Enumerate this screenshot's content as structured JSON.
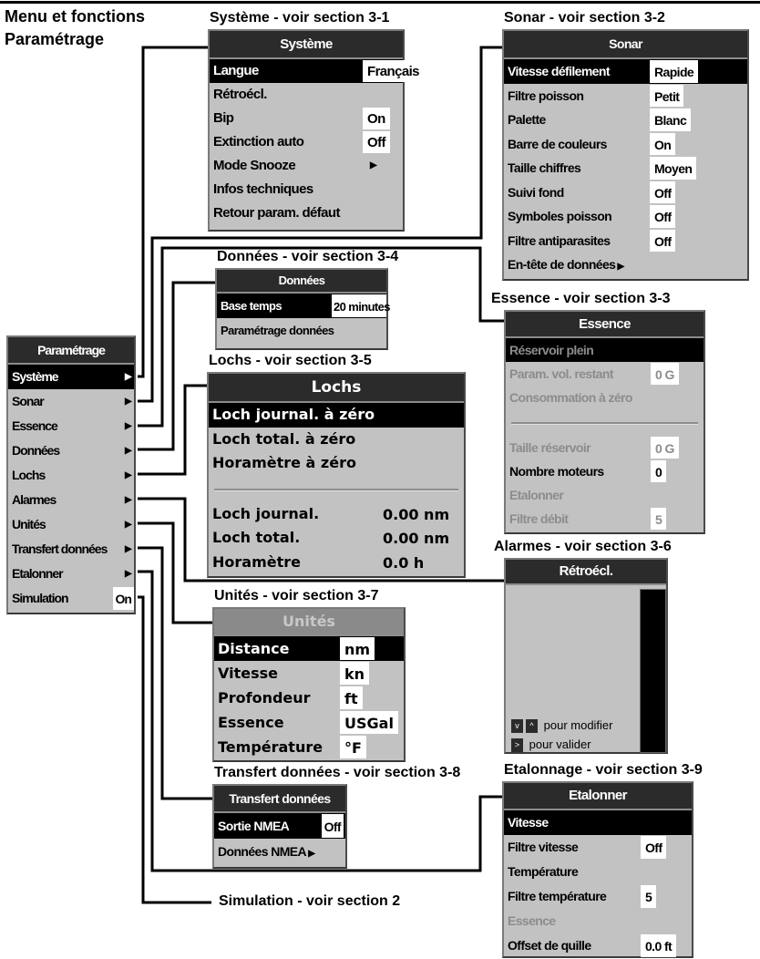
{
  "heading": {
    "line1": "Menu et fonctions",
    "line2": "Paramétrage"
  },
  "panels": [
    {
      "id": "p-param",
      "font": "narrow",
      "caption": "",
      "title": "Paramétrage",
      "rows": [
        {
          "label": "Système",
          "arrow": true,
          "highlighted": true
        },
        {
          "label": "Sonar",
          "arrow": true
        },
        {
          "label": "Essence",
          "arrow": true
        },
        {
          "label": "Données",
          "arrow": true
        },
        {
          "label": "Lochs",
          "arrow": true
        },
        {
          "label": "Alarmes",
          "arrow": true
        },
        {
          "label": "Unités",
          "arrow": true
        },
        {
          "label": "Transfert données",
          "arrow": true
        },
        {
          "label": "Etalonner",
          "arrow": true
        },
        {
          "label": "Simulation",
          "value": "On"
        }
      ]
    },
    {
      "id": "p-systeme",
      "font": "narrow",
      "caption": "Système - voir section 3-1",
      "title": "Système",
      "rows": [
        {
          "label": "Langue",
          "value": "Français",
          "highlighted": true
        },
        {
          "label": "Rétroécl."
        },
        {
          "label": "Bip",
          "value": "On"
        },
        {
          "label": "Extinction auto",
          "value": "Off"
        },
        {
          "label": "Mode Snooze",
          "submenu": true
        },
        {
          "label": "Infos techniques"
        },
        {
          "label": "Retour param. défaut"
        }
      ]
    },
    {
      "id": "p-sonar",
      "font": "narrow",
      "caption": "Sonar - voir section 3-2",
      "title": "Sonar",
      "rows": [
        {
          "label": "Vitesse défilement",
          "value": "Rapide",
          "highlighted": true
        },
        {
          "label": "Filtre poisson",
          "value": "Petit"
        },
        {
          "label": "Palette",
          "value": "Blanc"
        },
        {
          "label": "Barre de couleurs",
          "value": "On"
        },
        {
          "label": "Taille chiffres",
          "value": "Moyen"
        },
        {
          "label": "Suivi fond",
          "value": "Off"
        },
        {
          "label": "Symboles poisson",
          "value": "Off"
        },
        {
          "label": "Filtre antiparasites",
          "value": "Off"
        },
        {
          "label": "En-tête de données",
          "inlinearrow": true
        }
      ]
    },
    {
      "id": "p-donnees",
      "font": "narrow",
      "caption": "Données - voir section 3-4",
      "title": "Données",
      "rows": [
        {
          "label": "Base temps",
          "value": "20 minutes",
          "highlighted": true
        },
        {
          "label": "Paramétrage données"
        }
      ]
    },
    {
      "id": "p-lochs",
      "font": "wide",
      "caption": "Lochs - voir section 3-5",
      "title": "Lochs",
      "rows": [
        {
          "label": "Loch journal. à zéro",
          "highlighted": true
        },
        {
          "label": "Loch total. à zéro"
        },
        {
          "label": "Horamètre à zéro"
        },
        {
          "separator": true
        },
        {
          "label": "Loch journal.",
          "value": "0.00 nm"
        },
        {
          "label": "Loch total.",
          "value": "0.00 nm"
        },
        {
          "label": "Horamètre",
          "value": "0.0 h"
        }
      ]
    },
    {
      "id": "p-essence",
      "font": "narrow",
      "caption": "Essence - voir section 3-3",
      "title": "Essence",
      "rows": [
        {
          "label": "Réservoir plein",
          "highlighted": true,
          "disabled": true
        },
        {
          "label": "Param. vol. restant",
          "value": "0 G",
          "disabled": true
        },
        {
          "label": "Consommation à zéro",
          "disabled": true
        },
        {
          "separator": true
        },
        {
          "label": "Taille réservoir",
          "value": "0 G",
          "disabled": true
        },
        {
          "label": "Nombre moteurs",
          "value": "0"
        },
        {
          "label": "Etalonner",
          "disabled": true
        },
        {
          "label": "Filtre débit",
          "value": "5",
          "disabled": true
        }
      ]
    },
    {
      "id": "p-unites",
      "font": "wide",
      "caption": "Unités - voir section 3-7",
      "title": "Unités",
      "title_disabled": true,
      "rows": [
        {
          "label": "Distance",
          "value": "nm",
          "highlighted": true
        },
        {
          "label": "Vitesse",
          "value": "kn"
        },
        {
          "label": "Profondeur",
          "value": "ft"
        },
        {
          "label": "Essence",
          "value": "USGal"
        },
        {
          "label": "Température",
          "value": "°F"
        }
      ]
    },
    {
      "id": "p-transfert",
      "font": "narrow",
      "caption": "Transfert données - voir section 3-8",
      "title": "Transfert données",
      "rows": [
        {
          "label": "Sortie NMEA",
          "value": "Off",
          "highlighted": true
        },
        {
          "label": "Données NMEA",
          "inlinearrow": true
        }
      ]
    },
    {
      "id": "p-etal",
      "font": "narrow",
      "caption": "Etalonnage - voir section 3-9",
      "title": "Etalonner",
      "rows": [
        {
          "label": "Vitesse",
          "highlighted": true
        },
        {
          "label": "Filtre vitesse",
          "value": "Off"
        },
        {
          "label": "Température"
        },
        {
          "label": "Filtre température",
          "value": "5"
        },
        {
          "label": "Essence",
          "disabled": true
        },
        {
          "label": "Offset de quille",
          "value": "0.0 ft"
        }
      ]
    }
  ],
  "alarmes": {
    "caption": "Alarmes - voir section 3-6",
    "title": "Rétroécl.",
    "level_percent": 100,
    "hint_modify": "pour modifier",
    "hint_validate": "pour valider",
    "key_down": "v",
    "key_up": "^",
    "key_right": ">"
  },
  "simulation_caption": "Simulation - voir section 2",
  "icons": {
    "submenu": "triangle-right-icon"
  }
}
